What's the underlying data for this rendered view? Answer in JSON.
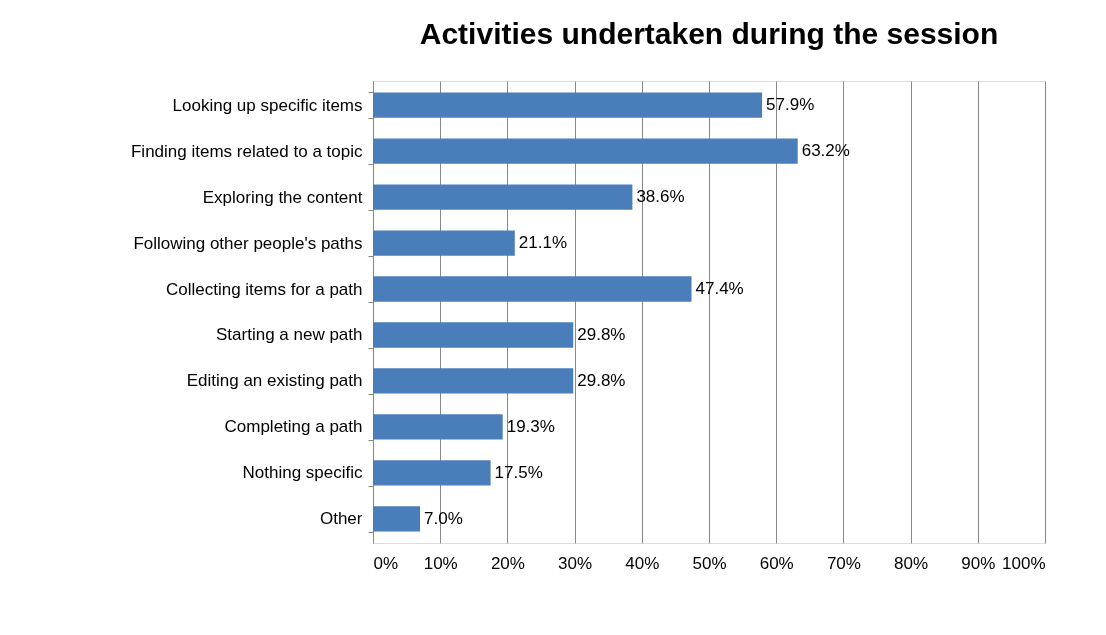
{
  "chart_data": {
    "type": "bar",
    "orientation": "horizontal",
    "title": "Activities undertaken during the session",
    "categories": [
      "Looking up specific items",
      "Finding items related to a topic",
      "Exploring the content",
      "Following other people's paths",
      "Collecting items for a path",
      "Starting a new path",
      "Editing an existing path",
      "Completing a path",
      "Nothing specific",
      "Other"
    ],
    "values": [
      57.9,
      63.2,
      38.6,
      21.1,
      47.4,
      29.8,
      29.8,
      19.3,
      17.5,
      7.0
    ],
    "value_labels": [
      "57.9%",
      "63.2%",
      "38.6%",
      "21.1%",
      "47.4%",
      "29.8%",
      "29.8%",
      "19.3%",
      "17.5%",
      "7.0%"
    ],
    "color": "#4a7ebb",
    "xlim": [
      0,
      100
    ],
    "xticks": [
      {
        "value": 0,
        "label": "0%"
      },
      {
        "value": 10,
        "label": "10%"
      },
      {
        "value": 20,
        "label": "20%"
      },
      {
        "value": 30,
        "label": "30%"
      },
      {
        "value": 40,
        "label": "40%"
      },
      {
        "value": 50,
        "label": "50%"
      },
      {
        "value": 60,
        "label": "60%"
      },
      {
        "value": 70,
        "label": "70%"
      },
      {
        "value": 80,
        "label": "80%"
      },
      {
        "value": 90,
        "label": "90%"
      },
      {
        "value": 100,
        "label": "100%"
      }
    ],
    "grid": "x"
  }
}
